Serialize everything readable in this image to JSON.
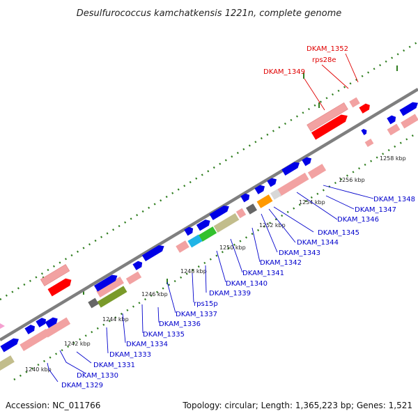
{
  "title": "Desulfurococcus kamchatkensis 1221n, complete genome",
  "footer": {
    "accession": "Accession: NC_011766",
    "summary": "Topology: circular; Length: 1,365,223 bp; Genes: 1,521"
  },
  "colors": {
    "backbone": "#7f7f7f",
    "cds_forward": "#0000e6",
    "cds_reverse": "#ff0000",
    "rna_pink": "#f2a2a2",
    "olive": "#c2bd8c",
    "tick_green": "#2e7d1e",
    "label_blue": "#0000cc",
    "label_red": "#e00000"
  },
  "ruler": {
    "ticks": [
      "1240 kbp",
      "1242 kbp",
      "1244 kbp",
      "1246 kbp",
      "1248 kbp",
      "1250 kbp",
      "1252 kbp",
      "1254 kbp",
      "1256 kbp",
      "1258 kbp"
    ]
  },
  "labels": {
    "blue": [
      "DKAM_1329",
      "DKAM_1330",
      "DKAM_1331",
      "DKAM_1333",
      "DKAM_1334",
      "DKAM_1335",
      "DKAM_1336",
      "DKAM_1337",
      "rps15p",
      "DKAM_1339",
      "DKAM_1340",
      "DKAM_1341",
      "DKAM_1342",
      "DKAM_1343",
      "DKAM_1344",
      "DKAM_1345",
      "DKAM_1346",
      "DKAM_1347",
      "DKAM_1348"
    ],
    "red": [
      "DKAM_1349",
      "rps28e",
      "DKAM_1352"
    ]
  }
}
